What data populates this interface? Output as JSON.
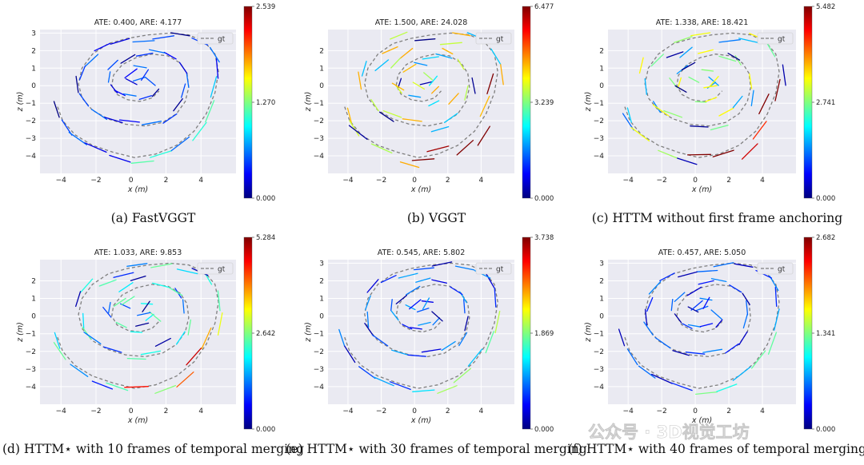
{
  "figure": {
    "watermark": "公众号 · 3D视觉工坊",
    "colormap": "jet"
  },
  "chart_data": [
    {
      "type": "line",
      "panel": "a",
      "title": "ATE: 0.400, ARE: 4.177",
      "caption": "(a) FastVGGT",
      "xlabel": "x (m)",
      "ylabel": "z (m)",
      "xlim": [
        -5.2,
        6.0
      ],
      "ylim": [
        -5.0,
        3.2
      ],
      "xticks": [
        -4,
        -2,
        0,
        2,
        4
      ],
      "yticks": [
        3,
        2,
        1,
        0,
        -1,
        -2,
        -3,
        -4
      ],
      "legend": {
        "label": "gt",
        "position": "top-right"
      },
      "grid": true,
      "colorbar": {
        "min": 0.0,
        "mid": 1.27,
        "max": 2.539,
        "labels": [
          "2.539",
          "1.270",
          "0.000"
        ]
      },
      "error_scale": 0.15
    },
    {
      "type": "line",
      "panel": "b",
      "title": "ATE: 1.500, ARE: 24.028",
      "caption": "(b) VGGT",
      "xlabel": "x (m)",
      "ylabel": "z (m)",
      "xlim": [
        -5.2,
        6.0
      ],
      "ylim": [
        -5.0,
        3.2
      ],
      "xticks": [
        -4,
        -2,
        0,
        2,
        4
      ],
      "yticks": [
        2,
        1,
        0,
        -1,
        -2,
        -3,
        -4
      ],
      "legend": {
        "label": "gt",
        "position": "top-right"
      },
      "grid": true,
      "colorbar": {
        "min": 0.0,
        "mid": 3.239,
        "max": 6.477,
        "labels": [
          "6.477",
          "3.239",
          "0.000"
        ]
      },
      "error_scale": 0.45
    },
    {
      "type": "line",
      "panel": "c",
      "title": "ATE: 1.338, ARE: 18.421",
      "caption": "(c) HTTM without first frame anchoring",
      "xlabel": "x (m)",
      "ylabel": "z (m)",
      "xlim": [
        -5.2,
        6.0
      ],
      "ylim": [
        -5.0,
        3.2
      ],
      "xticks": [
        -4,
        -2,
        0,
        2,
        4
      ],
      "yticks": [
        2,
        1,
        0,
        -1,
        -2,
        -3,
        -4
      ],
      "legend": {
        "label": "gt",
        "position": "top-right"
      },
      "grid": true,
      "colorbar": {
        "min": 0.0,
        "mid": 2.741,
        "max": 5.482,
        "labels": [
          "5.482",
          "2.741",
          "0.000"
        ]
      },
      "error_scale": 0.4
    },
    {
      "type": "line",
      "panel": "d",
      "title": "ATE: 1.033, ARE: 9.853",
      "caption": "(d) HTTM⋆ with 10 frames of temporal merging",
      "xlabel": "x (m)",
      "ylabel": "z (m)",
      "xlim": [
        -5.2,
        6.0
      ],
      "ylim": [
        -5.0,
        3.2
      ],
      "xticks": [
        -4,
        -2,
        0,
        2,
        4
      ],
      "yticks": [
        2,
        1,
        0,
        -1,
        -2,
        -3,
        -4
      ],
      "legend": {
        "label": "gt",
        "position": "top-right"
      },
      "grid": true,
      "colorbar": {
        "min": 0.0,
        "mid": 2.642,
        "max": 5.284,
        "labels": [
          "5.284",
          "2.642",
          "0.000"
        ]
      },
      "error_scale": 0.3
    },
    {
      "type": "line",
      "panel": "e",
      "title": "ATE: 0.545, ARE: 5.802",
      "caption": "(e) HTTM⋆ with 30 frames of temporal merging",
      "xlabel": "x (m)",
      "ylabel": "z (m)",
      "xlim": [
        -5.2,
        6.0
      ],
      "ylim": [
        -5.0,
        3.2
      ],
      "xticks": [
        -4,
        -2,
        0,
        2,
        4
      ],
      "yticks": [
        3,
        2,
        1,
        0,
        -1,
        -2,
        -3,
        -4
      ],
      "legend": {
        "label": "gt",
        "position": "top-right"
      },
      "grid": true,
      "colorbar": {
        "min": 0.0,
        "mid": 1.869,
        "max": 3.738,
        "labels": [
          "3.738",
          "1.869",
          "0.000"
        ]
      },
      "error_scale": 0.18
    },
    {
      "type": "line",
      "panel": "f",
      "title": "ATE: 0.457, ARE: 5.050",
      "caption": "(f) HTTM⋆ with 40 frames of temporal merging",
      "xlabel": "x (m)",
      "ylabel": "z (m)",
      "xlim": [
        -5.2,
        6.0
      ],
      "ylim": [
        -5.0,
        3.2
      ],
      "xticks": [
        -4,
        -2,
        0,
        2,
        4
      ],
      "yticks": [
        3,
        2,
        1,
        0,
        -1,
        -2,
        -3,
        -4
      ],
      "legend": {
        "label": "gt",
        "position": "top-right"
      },
      "grid": true,
      "colorbar": {
        "min": 0.0,
        "mid": 1.341,
        "max": 2.682,
        "labels": [
          "2.682",
          "1.341",
          "0.000"
        ]
      },
      "error_scale": 0.16
    }
  ],
  "gt_path": [
    [
      -4.2,
      -1.2
    ],
    [
      -3.9,
      -2.0
    ],
    [
      -3.2,
      -2.8
    ],
    [
      -2.2,
      -3.4
    ],
    [
      -1.0,
      -3.8
    ],
    [
      0.2,
      -4.1
    ],
    [
      1.4,
      -3.9
    ],
    [
      2.6,
      -3.4
    ],
    [
      3.6,
      -2.6
    ],
    [
      4.3,
      -1.6
    ],
    [
      4.8,
      -0.4
    ],
    [
      5.0,
      0.8
    ],
    [
      4.8,
      1.8
    ],
    [
      4.2,
      2.5
    ],
    [
      3.3,
      2.9
    ],
    [
      2.2,
      3.0
    ],
    [
      1.0,
      2.9
    ],
    [
      -0.2,
      2.7
    ],
    [
      -1.3,
      2.4
    ],
    [
      -2.2,
      1.8
    ],
    [
      -2.8,
      1.0
    ],
    [
      -3.0,
      0.1
    ],
    [
      -2.8,
      -0.7
    ],
    [
      -2.2,
      -1.4
    ],
    [
      -1.3,
      -1.9
    ],
    [
      -0.3,
      -2.2
    ],
    [
      0.8,
      -2.3
    ],
    [
      1.8,
      -2.1
    ],
    [
      2.6,
      -1.6
    ],
    [
      3.1,
      -0.9
    ],
    [
      3.3,
      -0.1
    ],
    [
      3.2,
      0.7
    ],
    [
      2.8,
      1.3
    ],
    [
      2.1,
      1.7
    ],
    [
      1.2,
      1.8
    ],
    [
      0.3,
      1.6
    ],
    [
      -0.5,
      1.2
    ],
    [
      -1.0,
      0.6
    ],
    [
      -1.1,
      0.0
    ],
    [
      -0.8,
      -0.5
    ],
    [
      -0.2,
      -0.8
    ],
    [
      0.5,
      -0.9
    ],
    [
      1.2,
      -0.7
    ],
    [
      1.6,
      -0.3
    ]
  ],
  "est_path": [
    [
      -4.4,
      -0.9
    ],
    [
      -4.1,
      -1.8
    ],
    [
      -3.5,
      -2.7
    ],
    [
      -2.5,
      -3.4
    ],
    [
      -1.3,
      -3.9
    ],
    [
      -0.1,
      -4.3
    ],
    [
      1.2,
      -4.2
    ],
    [
      2.4,
      -3.8
    ],
    [
      3.4,
      -3.0
    ],
    [
      4.2,
      -2.0
    ],
    [
      4.7,
      -0.8
    ],
    [
      5.0,
      0.4
    ],
    [
      4.9,
      1.5
    ],
    [
      4.4,
      2.3
    ],
    [
      3.5,
      2.7
    ],
    [
      2.4,
      2.9
    ],
    [
      1.2,
      2.7
    ],
    [
      0.0,
      2.6
    ],
    [
      -1.1,
      2.3
    ],
    [
      -2.0,
      1.9
    ],
    [
      -2.7,
      1.2
    ],
    [
      -3.0,
      0.4
    ],
    [
      -2.9,
      -0.5
    ],
    [
      -2.4,
      -1.2
    ],
    [
      -1.5,
      -1.8
    ],
    [
      -0.5,
      -2.1
    ],
    [
      0.6,
      -2.2
    ],
    [
      1.7,
      -2.0
    ],
    [
      2.5,
      -1.5
    ],
    [
      3.0,
      -0.8
    ],
    [
      3.2,
      0.0
    ],
    [
      3.1,
      0.8
    ],
    [
      2.7,
      1.4
    ],
    [
      2.0,
      1.8
    ],
    [
      1.1,
      2.0
    ],
    [
      0.2,
      1.8
    ],
    [
      -0.6,
      1.3
    ],
    [
      -1.2,
      0.8
    ],
    [
      -1.3,
      0.2
    ],
    [
      -0.9,
      -0.3
    ],
    [
      -0.3,
      -0.6
    ],
    [
      0.4,
      -0.7
    ],
    [
      1.1,
      -0.5
    ],
    [
      1.5,
      -0.1
    ],
    [
      0.9,
      0.4
    ],
    [
      0.2,
      0.2
    ],
    [
      -0.4,
      0.5
    ],
    [
      0.3,
      1.0
    ],
    [
      1.0,
      0.9
    ],
    [
      0.6,
      0.3
    ]
  ]
}
